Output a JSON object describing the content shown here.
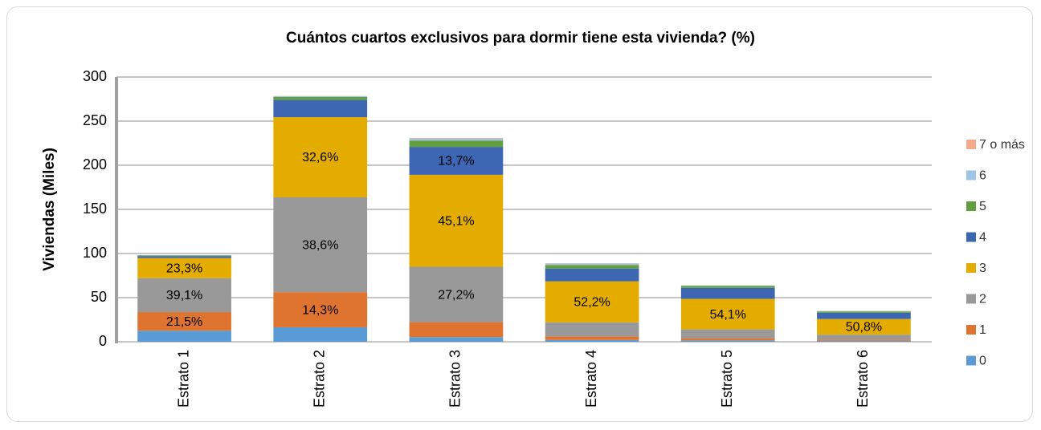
{
  "chart_data": {
    "type": "stacked_bar",
    "title": "Cuántos cuartos exclusivos para dormir tiene esta vivienda? (%)",
    "y_label": "Viviendas (Miles)",
    "categories": [
      "Estrato 1",
      "Estrato 2",
      "Estrato 3",
      "Estrato 4",
      "Estrato 5",
      "Estrato 6"
    ],
    "series": [
      {
        "name": "0",
        "color": "#5b9bd5",
        "values": [
          12.5,
          16.4,
          5.2,
          2,
          1.5,
          1
        ],
        "value_labels": [
          null,
          null,
          null,
          null,
          null,
          null
        ]
      },
      {
        "name": "1",
        "color": "#de7430",
        "values": [
          21.1,
          39.8,
          17.0,
          4,
          2.5,
          1.5
        ],
        "value_labels": [
          "21,5%",
          "14,3%",
          null,
          null,
          null,
          null
        ]
      },
      {
        "name": "2",
        "color": "#999999",
        "values": [
          38.4,
          107.5,
          62.8,
          16,
          10,
          5.5
        ],
        "value_labels": [
          "39,1%",
          "38,6%",
          "27,2%",
          null,
          null,
          null
        ]
      },
      {
        "name": "3",
        "color": "#e5ac00",
        "values": [
          22.9,
          90.8,
          104.2,
          46.5,
          34.6,
          17.8
        ],
        "value_labels": [
          "23,3%",
          "32,6%",
          "45,1%",
          "52,2%",
          "54,1%",
          "50,8%"
        ]
      },
      {
        "name": "4",
        "color": "#3d67b3",
        "values": [
          2.2,
          19.5,
          31.6,
          14.5,
          12.5,
          7
        ],
        "value_labels": [
          null,
          null,
          "13,7%",
          null,
          null,
          null
        ]
      },
      {
        "name": "5",
        "color": "#62a03d",
        "values": [
          0.7,
          3.3,
          7.2,
          4,
          2.2,
          1.5
        ],
        "value_labels": [
          null,
          null,
          null,
          null,
          null,
          null
        ]
      },
      {
        "name": "6",
        "color": "#9dc3e6",
        "values": [
          0.3,
          1.0,
          2.3,
          1.5,
          0.5,
          0.6
        ],
        "value_labels": [
          null,
          null,
          null,
          null,
          null,
          null
        ]
      },
      {
        "name": "7 o más",
        "color": "#f4a88c",
        "values": [
          0.1,
          0.2,
          0.7,
          0.5,
          0.2,
          0.15
        ],
        "value_labels": [
          null,
          null,
          null,
          null,
          null,
          null
        ]
      }
    ],
    "ylim": [
      0,
      300
    ],
    "yticks": [
      0,
      50,
      100,
      150,
      200,
      250,
      300
    ],
    "grid": true,
    "legend": "right"
  }
}
